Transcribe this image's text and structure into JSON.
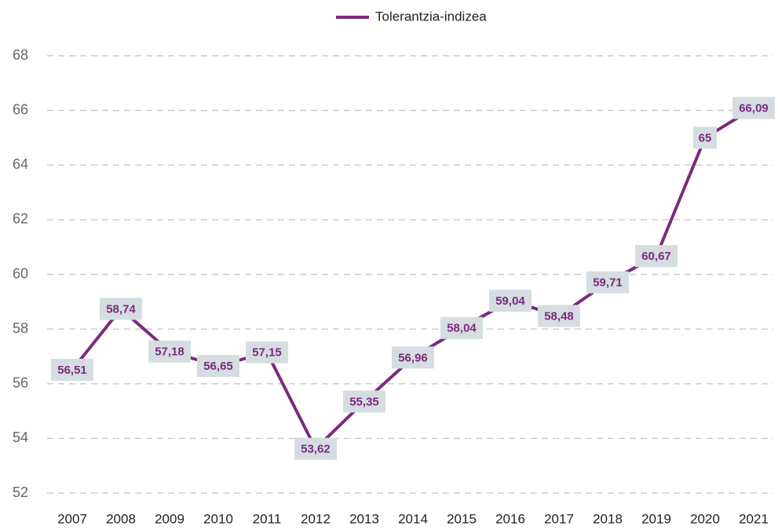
{
  "chart_data": {
    "type": "line",
    "categories": [
      "2007",
      "2008",
      "2009",
      "2010",
      "2011",
      "2012",
      "2013",
      "2014",
      "2015",
      "2016",
      "2017",
      "2018",
      "2019",
      "2020",
      "2021"
    ],
    "series": [
      {
        "name": "Tolerantzia-indizea",
        "color": "#7b2a7f",
        "values": [
          56.51,
          58.74,
          57.18,
          56.65,
          57.15,
          53.62,
          55.35,
          56.96,
          58.04,
          59.04,
          58.48,
          59.71,
          60.67,
          65,
          66.09
        ],
        "value_labels": [
          "56,51",
          "58,74",
          "57,18",
          "56,65",
          "57,15",
          "53,62",
          "55,35",
          "56,96",
          "58,04",
          "59,04",
          "58,48",
          "59,71",
          "60,67",
          "65",
          "66,09"
        ]
      }
    ],
    "ylim": [
      52,
      68
    ],
    "yticks": [
      52,
      54,
      56,
      58,
      60,
      62,
      64,
      66,
      68
    ],
    "grid": true,
    "legend": "top"
  }
}
